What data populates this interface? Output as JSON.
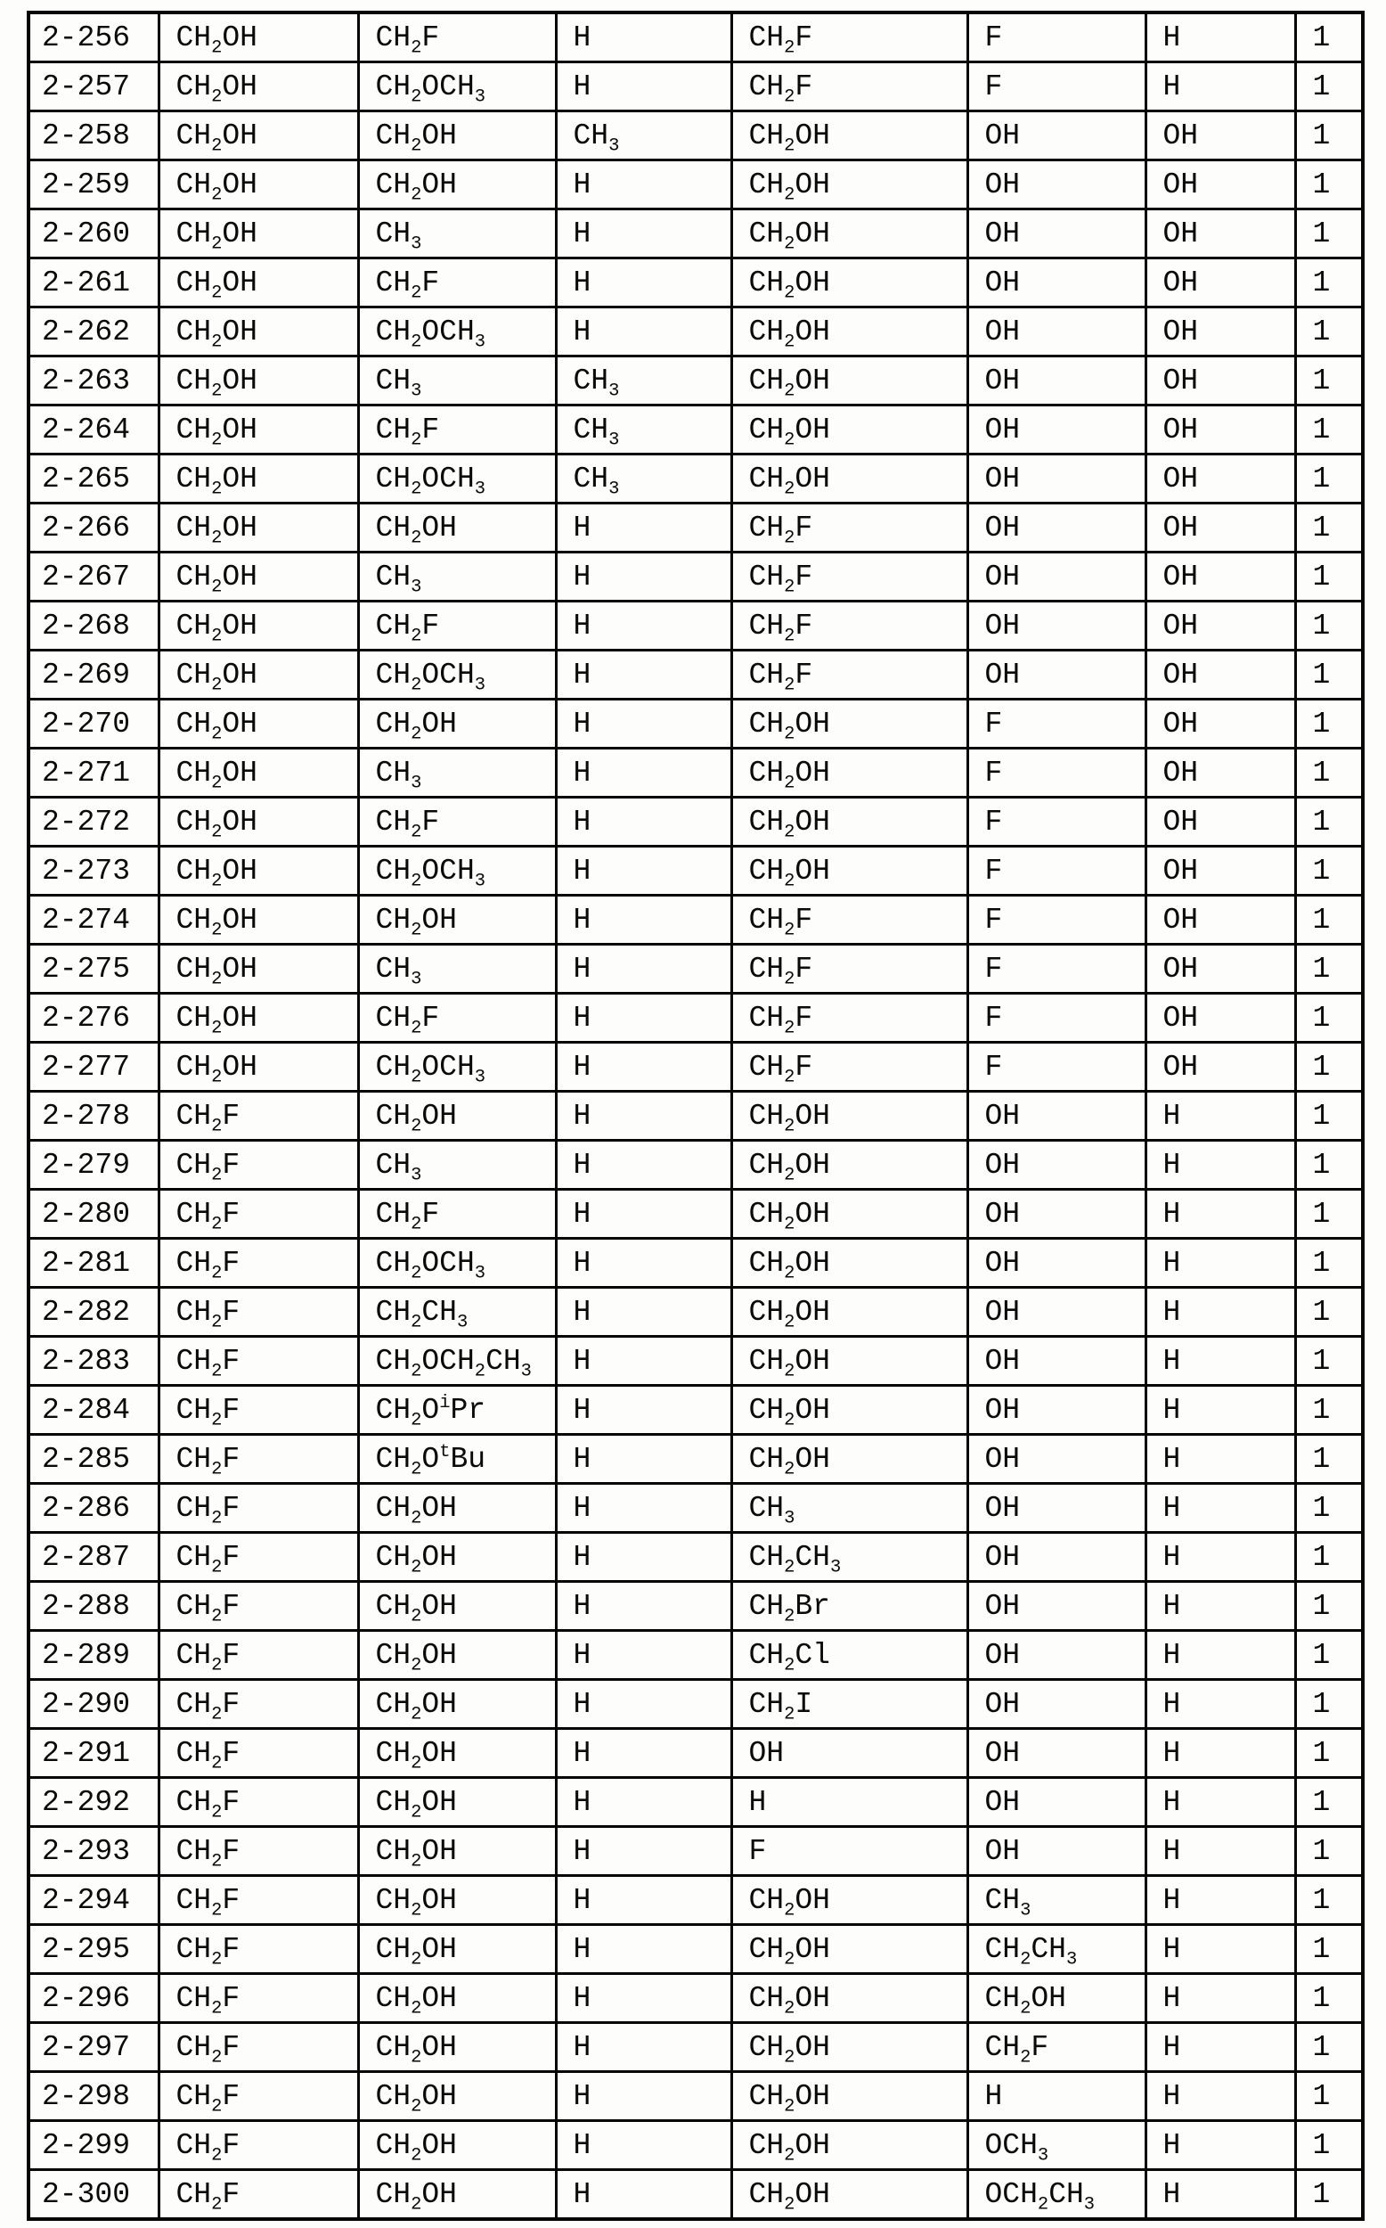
{
  "table": {
    "rows": [
      [
        "2-256",
        "CH_2OH",
        "CH_2F",
        "H",
        "CH_2F",
        "F",
        "H",
        "1"
      ],
      [
        "2-257",
        "CH_2OH",
        "CH_2OCH_3",
        "H",
        "CH_2F",
        "F",
        "H",
        "1"
      ],
      [
        "2-258",
        "CH_2OH",
        "CH_2OH",
        "CH_3",
        "CH_2OH",
        "OH",
        "OH",
        "1"
      ],
      [
        "2-259",
        "CH_2OH",
        "CH_2OH",
        "H",
        "CH_2OH",
        "OH",
        "OH",
        "1"
      ],
      [
        "2-260",
        "CH_2OH",
        "CH_3",
        "H",
        "CH_2OH",
        "OH",
        "OH",
        "1"
      ],
      [
        "2-261",
        "CH_2OH",
        "CH_2F",
        "H",
        "CH_2OH",
        "OH",
        "OH",
        "1"
      ],
      [
        "2-262",
        "CH_2OH",
        "CH_2OCH_3",
        "H",
        "CH_2OH",
        "OH",
        "OH",
        "1"
      ],
      [
        "2-263",
        "CH_2OH",
        "CH_3",
        "CH_3",
        "CH_2OH",
        "OH",
        "OH",
        "1"
      ],
      [
        "2-264",
        "CH_2OH",
        "CH_2F",
        "CH_3",
        "CH_2OH",
        "OH",
        "OH",
        "1"
      ],
      [
        "2-265",
        "CH_2OH",
        "CH_2OCH_3",
        "CH_3",
        "CH_2OH",
        "OH",
        "OH",
        "1"
      ],
      [
        "2-266",
        "CH_2OH",
        "CH_2OH",
        "H",
        "CH_2F",
        "OH",
        "OH",
        "1"
      ],
      [
        "2-267",
        "CH_2OH",
        "CH_3",
        "H",
        "CH_2F",
        "OH",
        "OH",
        "1"
      ],
      [
        "2-268",
        "CH_2OH",
        "CH_2F",
        "H",
        "CH_2F",
        "OH",
        "OH",
        "1"
      ],
      [
        "2-269",
        "CH_2OH",
        "CH_2OCH_3",
        "H",
        "CH_2F",
        "OH",
        "OH",
        "1"
      ],
      [
        "2-270",
        "CH_2OH",
        "CH_2OH",
        "H",
        "CH_2OH",
        "F",
        "OH",
        "1"
      ],
      [
        "2-271",
        "CH_2OH",
        "CH_3",
        "H",
        "CH_2OH",
        "F",
        "OH",
        "1"
      ],
      [
        "2-272",
        "CH_2OH",
        "CH_2F",
        "H",
        "CH_2OH",
        "F",
        "OH",
        "1"
      ],
      [
        "2-273",
        "CH_2OH",
        "CH_2OCH_3",
        "H",
        "CH_2OH",
        "F",
        "OH",
        "1"
      ],
      [
        "2-274",
        "CH_2OH",
        "CH_2OH",
        "H",
        "CH_2F",
        "F",
        "OH",
        "1"
      ],
      [
        "2-275",
        "CH_2OH",
        "CH_3",
        "H",
        "CH_2F",
        "F",
        "OH",
        "1"
      ],
      [
        "2-276",
        "CH_2OH",
        "CH_2F",
        "H",
        "CH_2F",
        "F",
        "OH",
        "1"
      ],
      [
        "2-277",
        "CH_2OH",
        "CH_2OCH_3",
        "H",
        "CH_2F",
        "F",
        "OH",
        "1"
      ],
      [
        "2-278",
        "CH_2F",
        "CH_2OH",
        "H",
        "CH_2OH",
        "OH",
        "H",
        "1"
      ],
      [
        "2-279",
        "CH_2F",
        "CH_3",
        "H",
        "CH_2OH",
        "OH",
        "H",
        "1"
      ],
      [
        "2-280",
        "CH_2F",
        "CH_2F",
        "H",
        "CH_2OH",
        "OH",
        "H",
        "1"
      ],
      [
        "2-281",
        "CH_2F",
        "CH_2OCH_3",
        "H",
        "CH_2OH",
        "OH",
        "H",
        "1"
      ],
      [
        "2-282",
        "CH_2F",
        "CH_2CH_3",
        "H",
        "CH_2OH",
        "OH",
        "H",
        "1"
      ],
      [
        "2-283",
        "CH_2F",
        "CH_2OCH_2CH_3",
        "H",
        "CH_2OH",
        "OH",
        "H",
        "1"
      ],
      [
        "2-284",
        "CH_2F",
        "CH_2O^iPr",
        "H",
        "CH_2OH",
        "OH",
        "H",
        "1"
      ],
      [
        "2-285",
        "CH_2F",
        "CH_2O^tBu",
        "H",
        "CH_2OH",
        "OH",
        "H",
        "1"
      ],
      [
        "2-286",
        "CH_2F",
        "CH_2OH",
        "H",
        "CH_3",
        "OH",
        "H",
        "1"
      ],
      [
        "2-287",
        "CH_2F",
        "CH_2OH",
        "H",
        "CH_2CH_3",
        "OH",
        "H",
        "1"
      ],
      [
        "2-288",
        "CH_2F",
        "CH_2OH",
        "H",
        "CH_2Br",
        "OH",
        "H",
        "1"
      ],
      [
        "2-289",
        "CH_2F",
        "CH_2OH",
        "H",
        "CH_2Cl",
        "OH",
        "H",
        "1"
      ],
      [
        "2-290",
        "CH_2F",
        "CH_2OH",
        "H",
        "CH_2I",
        "OH",
        "H",
        "1"
      ],
      [
        "2-291",
        "CH_2F",
        "CH_2OH",
        "H",
        "OH",
        "OH",
        "H",
        "1"
      ],
      [
        "2-292",
        "CH_2F",
        "CH_2OH",
        "H",
        "H",
        "OH",
        "H",
        "1"
      ],
      [
        "2-293",
        "CH_2F",
        "CH_2OH",
        "H",
        "F",
        "OH",
        "H",
        "1"
      ],
      [
        "2-294",
        "CH_2F",
        "CH_2OH",
        "H",
        "CH_2OH",
        "CH_3",
        "H",
        "1"
      ],
      [
        "2-295",
        "CH_2F",
        "CH_2OH",
        "H",
        "CH_2OH",
        "CH_2CH_3",
        "H",
        "1"
      ],
      [
        "2-296",
        "CH_2F",
        "CH_2OH",
        "H",
        "CH_2OH",
        "CH_2OH",
        "H",
        "1"
      ],
      [
        "2-297",
        "CH_2F",
        "CH_2OH",
        "H",
        "CH_2OH",
        "CH_2F",
        "H",
        "1"
      ],
      [
        "2-298",
        "CH_2F",
        "CH_2OH",
        "H",
        "CH_2OH",
        "H",
        "H",
        "1"
      ],
      [
        "2-299",
        "CH_2F",
        "CH_2OH",
        "H",
        "CH_2OH",
        "OCH_3",
        "H",
        "1"
      ],
      [
        "2-300",
        "CH_2F",
        "CH_2OH",
        "H",
        "CH_2OH",
        "OCH_2CH_3",
        "H",
        "1"
      ]
    ]
  }
}
